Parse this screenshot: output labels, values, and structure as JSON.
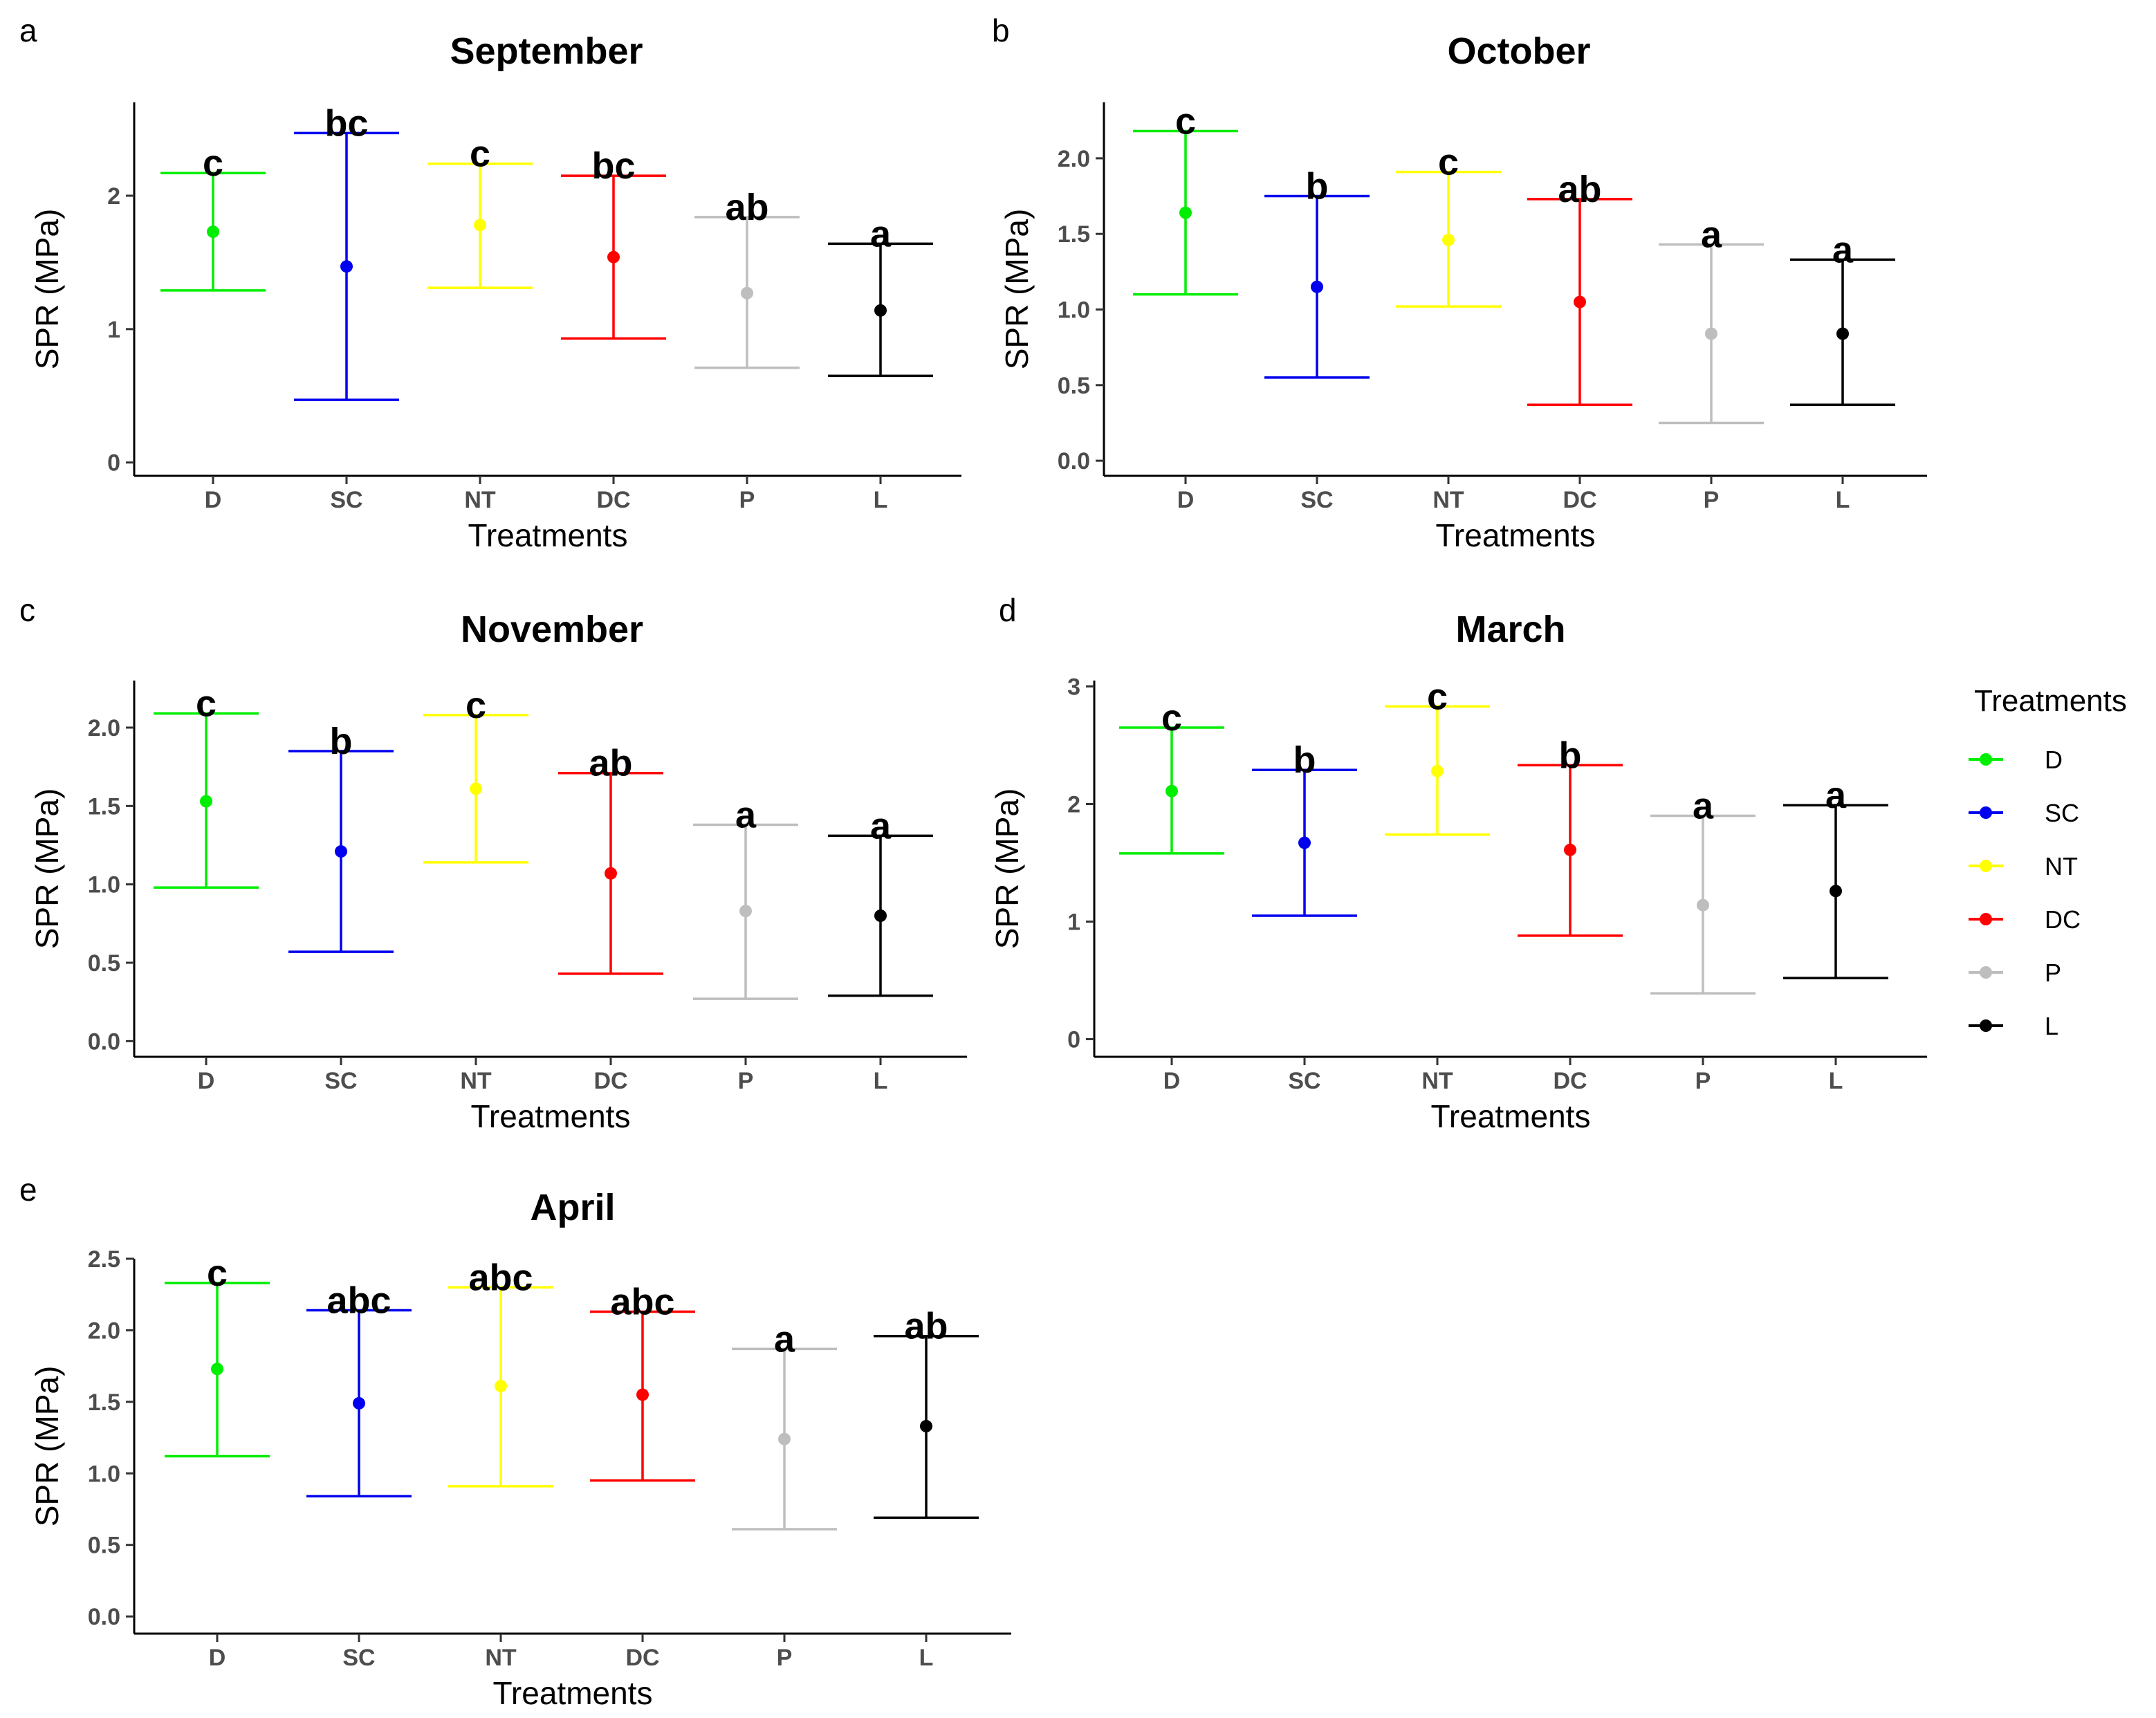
{
  "y_axis_label": "SPR (MPa)",
  "x_axis_label": "Treatments",
  "legend": {
    "title": "Treatments",
    "items": [
      {
        "label": "D",
        "color": "#00ee00"
      },
      {
        "label": "SC",
        "color": "#0000ee"
      },
      {
        "label": "NT",
        "color": "#ffff00"
      },
      {
        "label": "DC",
        "color": "#ff0000"
      },
      {
        "label": "P",
        "color": "#bebebe"
      },
      {
        "label": "L",
        "color": "#000000"
      }
    ]
  },
  "chart_data": [
    {
      "type": "errorbar",
      "panel": "a",
      "title": "September",
      "xlabel": "Treatments",
      "ylabel": "SPR (MPa)",
      "ylim": [
        -0.1,
        2.7
      ],
      "yticks": [
        0,
        1,
        2
      ],
      "ytick_labels": [
        "0",
        "1",
        "2"
      ],
      "categories": [
        "D",
        "SC",
        "NT",
        "DC",
        "P",
        "L"
      ],
      "mean": [
        1.73,
        1.47,
        1.78,
        1.54,
        1.27,
        1.14
      ],
      "lower": [
        1.29,
        0.47,
        1.31,
        0.93,
        0.71,
        0.65
      ],
      "upper": [
        2.17,
        2.47,
        2.24,
        2.15,
        1.84,
        1.64
      ],
      "letters": [
        "c",
        "bc",
        "c",
        "bc",
        "ab",
        "a"
      ]
    },
    {
      "type": "errorbar",
      "panel": "b",
      "title": "October",
      "xlabel": "Treatments",
      "ylabel": "SPR (MPa)",
      "ylim": [
        -0.1,
        2.37
      ],
      "yticks": [
        0,
        0.5,
        1.0,
        1.5,
        2.0
      ],
      "ytick_labels": [
        "0.0",
        "0.5",
        "1.0",
        "1.5",
        "2.0"
      ],
      "categories": [
        "D",
        "SC",
        "NT",
        "DC",
        "P",
        "L"
      ],
      "mean": [
        1.64,
        1.15,
        1.46,
        1.05,
        0.84,
        0.84
      ],
      "lower": [
        1.1,
        0.55,
        1.02,
        0.37,
        0.25,
        0.37
      ],
      "upper": [
        2.18,
        1.75,
        1.91,
        1.73,
        1.43,
        1.33
      ],
      "letters": [
        "c",
        "b",
        "c",
        "ab",
        "a",
        "a"
      ]
    },
    {
      "type": "errorbar",
      "panel": "c",
      "title": "November",
      "xlabel": "Treatments",
      "ylabel": "SPR (MPa)",
      "ylim": [
        -0.1,
        2.3
      ],
      "yticks": [
        0,
        0.5,
        1.0,
        1.5,
        2.0
      ],
      "ytick_labels": [
        "0.0",
        "0.5",
        "1.0",
        "1.5",
        "2.0"
      ],
      "categories": [
        "D",
        "SC",
        "NT",
        "DC",
        "P",
        "L"
      ],
      "mean": [
        1.53,
        1.21,
        1.61,
        1.07,
        0.83,
        0.8
      ],
      "lower": [
        0.98,
        0.57,
        1.14,
        0.43,
        0.27,
        0.29
      ],
      "upper": [
        2.09,
        1.85,
        2.08,
        1.71,
        1.38,
        1.31
      ],
      "letters": [
        "c",
        "b",
        "c",
        "ab",
        "a",
        "a"
      ]
    },
    {
      "type": "errorbar",
      "panel": "d",
      "title": "March",
      "xlabel": "Treatments",
      "ylabel": "SPR (MPa)",
      "ylim": [
        -0.15,
        3.05
      ],
      "yticks": [
        0,
        1,
        2,
        3
      ],
      "ytick_labels": [
        "0",
        "1",
        "2",
        "3"
      ],
      "categories": [
        "D",
        "SC",
        "NT",
        "DC",
        "P",
        "L"
      ],
      "mean": [
        2.11,
        1.67,
        2.28,
        1.61,
        1.14,
        1.26
      ],
      "lower": [
        1.58,
        1.05,
        1.74,
        0.88,
        0.39,
        0.52
      ],
      "upper": [
        2.65,
        2.29,
        2.83,
        2.33,
        1.9,
        1.99
      ],
      "letters": [
        "c",
        "b",
        "c",
        "b",
        "a",
        "a"
      ]
    },
    {
      "type": "errorbar",
      "panel": "e",
      "title": "April",
      "xlabel": "Treatments",
      "ylabel": "SPR (MPa)",
      "ylim": [
        -0.12,
        2.5
      ],
      "yticks": [
        0,
        0.5,
        1.0,
        1.5,
        2.0,
        2.5
      ],
      "ytick_labels": [
        "0.0",
        "0.5",
        "1.0",
        "1.5",
        "2.0",
        "2.5"
      ],
      "categories": [
        "D",
        "SC",
        "NT",
        "DC",
        "P",
        "L"
      ],
      "mean": [
        1.73,
        1.49,
        1.61,
        1.55,
        1.24,
        1.33
      ],
      "lower": [
        1.12,
        0.84,
        0.91,
        0.95,
        0.61,
        0.69
      ],
      "upper": [
        2.33,
        2.14,
        2.3,
        2.13,
        1.87,
        1.96
      ],
      "letters": [
        "c",
        "abc",
        "abc",
        "abc",
        "a",
        "ab"
      ]
    }
  ]
}
